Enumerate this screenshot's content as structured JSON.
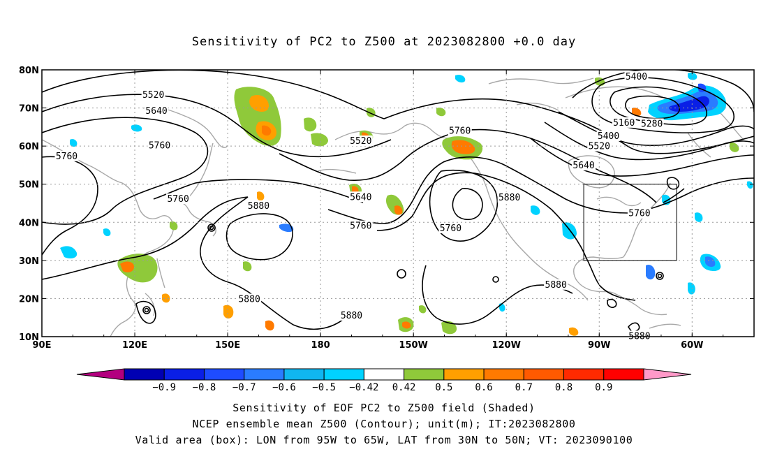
{
  "title": "Sensitivity of PC2 to Z500 at 2023082800 +0.0 day",
  "footer": {
    "line1": "Sensitivity of EOF PC2 to Z500 field (Shaded)",
    "line2": "NCEP ensemble mean Z500 (Contour); unit(m); IT:2023082800",
    "line3": "Valid area (box): LON from 95W to 65W, LAT from 30N to 50N; VT: 2023090100"
  },
  "map": {
    "lon_range": [
      90,
      320
    ],
    "lat_range": [
      10,
      80
    ],
    "x_ticks": [
      {
        "lon": 90,
        "label": "90E"
      },
      {
        "lon": 120,
        "label": "120E"
      },
      {
        "lon": 150,
        "label": "150E"
      },
      {
        "lon": 180,
        "label": "180"
      },
      {
        "lon": 210,
        "label": "150W"
      },
      {
        "lon": 240,
        "label": "120W"
      },
      {
        "lon": 270,
        "label": "90W"
      },
      {
        "lon": 300,
        "label": "60W"
      }
    ],
    "y_ticks": [
      {
        "lat": 10,
        "label": "10N"
      },
      {
        "lat": 20,
        "label": "20N"
      },
      {
        "lat": 30,
        "label": "30N"
      },
      {
        "lat": 40,
        "label": "40N"
      },
      {
        "lat": 50,
        "label": "50N"
      },
      {
        "lat": 60,
        "label": "60N"
      },
      {
        "lat": 70,
        "label": "70N"
      },
      {
        "lat": 80,
        "label": "80N"
      }
    ],
    "grid": true,
    "valid_box": {
      "lon_min": 265,
      "lon_max": 295,
      "lat_min": 30,
      "lat_max": 50
    },
    "contour_labels": [
      {
        "text": "5520",
        "lon": 126,
        "lat": 73.4
      },
      {
        "text": "5640",
        "lon": 127,
        "lat": 69.2
      },
      {
        "text": "5760",
        "lon": 128,
        "lat": 60.1
      },
      {
        "text": "5760",
        "lon": 98,
        "lat": 57.3
      },
      {
        "text": "5760",
        "lon": 134,
        "lat": 46.1
      },
      {
        "text": "5880",
        "lon": 160,
        "lat": 44.3
      },
      {
        "text": "5520",
        "lon": 193,
        "lat": 61.3
      },
      {
        "text": "5640",
        "lon": 193,
        "lat": 46.6
      },
      {
        "text": "5760",
        "lon": 193,
        "lat": 39.0
      },
      {
        "text": "5760",
        "lon": 225,
        "lat": 64.0
      },
      {
        "text": "5760",
        "lon": 222,
        "lat": 38.4
      },
      {
        "text": "5880",
        "lon": 241,
        "lat": 46.5
      },
      {
        "text": "5400",
        "lon": 282,
        "lat": 78.2
      },
      {
        "text": "5160",
        "lon": 278,
        "lat": 66.1
      },
      {
        "text": "5280",
        "lon": 287,
        "lat": 65.8
      },
      {
        "text": "5400",
        "lon": 273,
        "lat": 62.6
      },
      {
        "text": "5520",
        "lon": 270,
        "lat": 59.9
      },
      {
        "text": "5640",
        "lon": 265,
        "lat": 54.9
      },
      {
        "text": "5760",
        "lon": 283,
        "lat": 42.3
      },
      {
        "text": "5880",
        "lon": 157,
        "lat": 19.8
      },
      {
        "text": "5880",
        "lon": 190,
        "lat": 15.5
      },
      {
        "text": "5880",
        "lon": 256,
        "lat": 23.6
      },
      {
        "text": "5880",
        "lon": 283,
        "lat": 10.1
      }
    ]
  },
  "colorbar": {
    "colors": [
      "#b3007f",
      "#0000b3",
      "#0a1fe6",
      "#1e4cff",
      "#2a7cff",
      "#10b6f0",
      "#00d2ff",
      "#ffffff",
      "#8fc93a",
      "#ff9f00",
      "#ff7a00",
      "#ff5a00",
      "#ff2a00",
      "#ff0000",
      "#ff99c8"
    ],
    "tick_labels": [
      "−0.9",
      "−0.8",
      "−0.7",
      "−0.6",
      "−0.5",
      "−0.42",
      "0.42",
      "0.5",
      "0.6",
      "0.7",
      "0.8",
      "0.9"
    ]
  }
}
